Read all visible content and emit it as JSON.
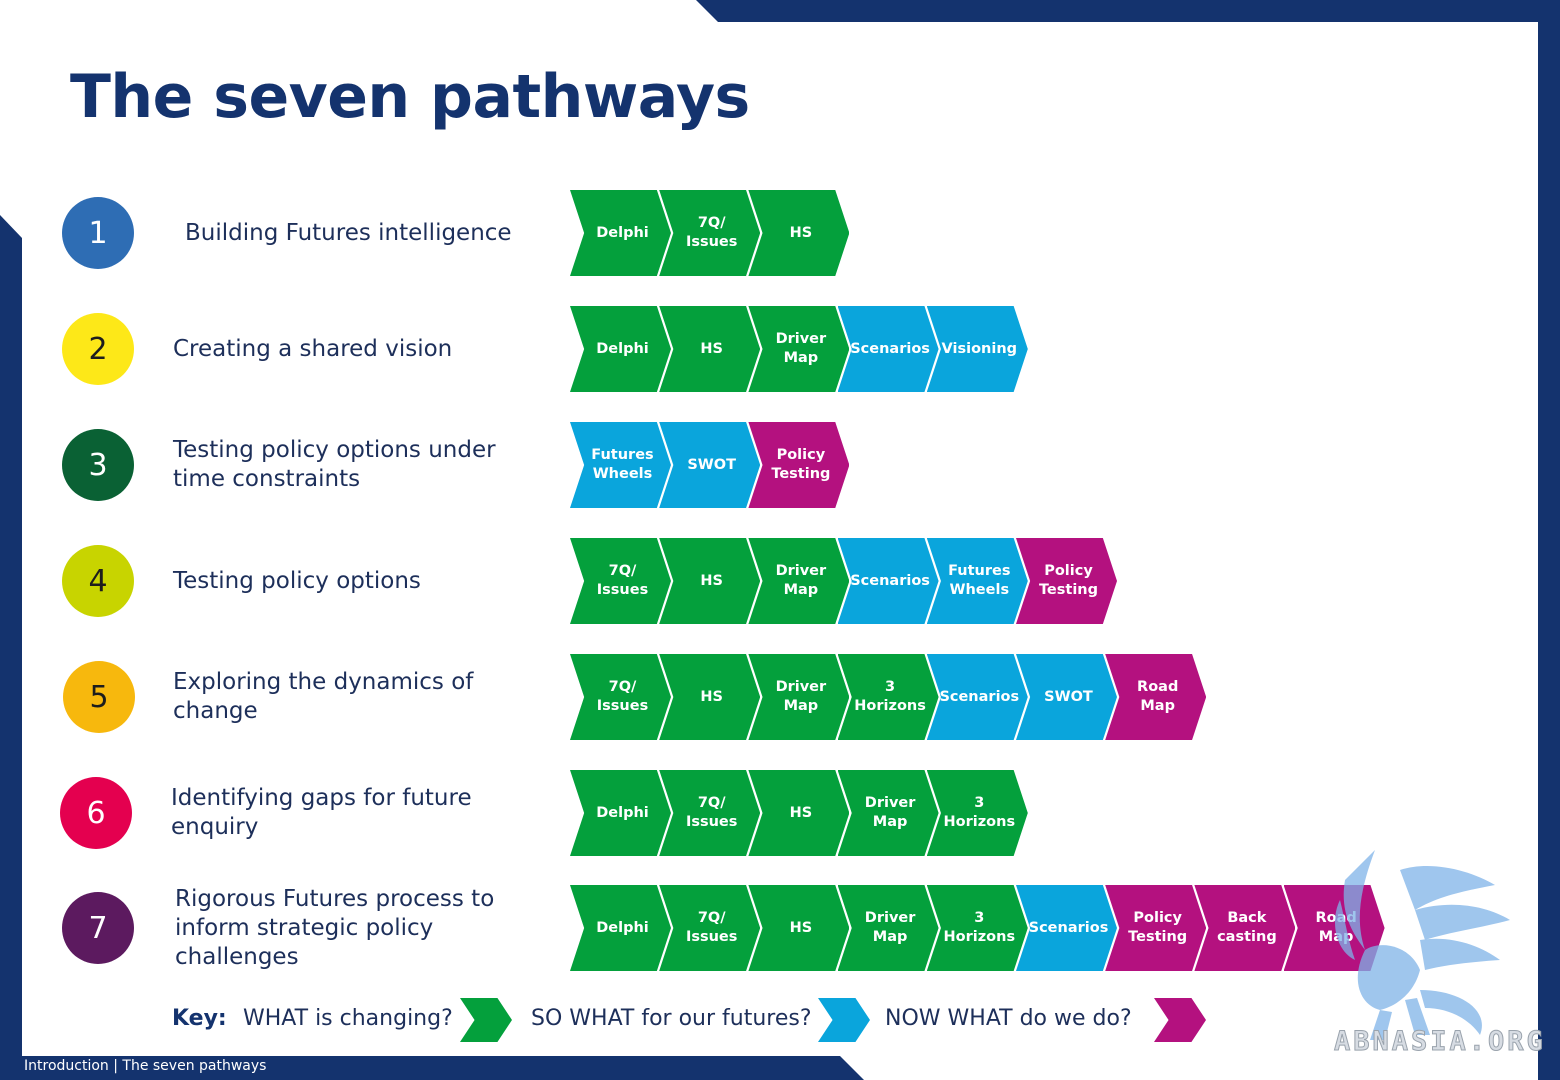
{
  "title": "The seven pathways",
  "footer": "Introduction | The seven pathways",
  "colors": {
    "navy": "#14336e",
    "what": "#04a03c",
    "so_what": "#0aa5dc",
    "now_what": "#b4117f"
  },
  "pathways": [
    {
      "number": "1",
      "label": "Building Futures intelligence",
      "circle_color": "#2e6db4",
      "num_color": "#ffffff",
      "steps": [
        {
          "text": "Delphi",
          "kind": "what"
        },
        {
          "text": "7Q/\nIssues",
          "kind": "what"
        },
        {
          "text": "HS",
          "kind": "what"
        }
      ]
    },
    {
      "number": "2",
      "label": "Creating a shared vision",
      "circle_color": "#fde818",
      "num_color": "#1d1d1d",
      "steps": [
        {
          "text": "Delphi",
          "kind": "what"
        },
        {
          "text": "HS",
          "kind": "what"
        },
        {
          "text": "Driver\nMap",
          "kind": "what"
        },
        {
          "text": "Scenarios",
          "kind": "so_what"
        },
        {
          "text": "Visioning",
          "kind": "so_what"
        }
      ]
    },
    {
      "number": "3",
      "label": "Testing policy options under\ntime constraints",
      "circle_color": "#0a6134",
      "num_color": "#ffffff",
      "steps": [
        {
          "text": "Futures\nWheels",
          "kind": "so_what"
        },
        {
          "text": "SWOT",
          "kind": "so_what"
        },
        {
          "text": "Policy\nTesting",
          "kind": "now_what"
        }
      ]
    },
    {
      "number": "4",
      "label": "Testing policy options",
      "circle_color": "#c8d400",
      "num_color": "#1d1d1d",
      "steps": [
        {
          "text": "7Q/\nIssues",
          "kind": "what"
        },
        {
          "text": "HS",
          "kind": "what"
        },
        {
          "text": "Driver\nMap",
          "kind": "what"
        },
        {
          "text": "Scenarios",
          "kind": "so_what"
        },
        {
          "text": "Futures\nWheels",
          "kind": "so_what"
        },
        {
          "text": "Policy\nTesting",
          "kind": "now_what"
        }
      ]
    },
    {
      "number": "5",
      "label": "Exploring the dynamics of\nchange",
      "circle_color": "#f7b80d",
      "num_color": "#1d1d1d",
      "steps": [
        {
          "text": "7Q/\nIssues",
          "kind": "what"
        },
        {
          "text": "HS",
          "kind": "what"
        },
        {
          "text": "Driver\nMap",
          "kind": "what"
        },
        {
          "text": "3\nHorizons",
          "kind": "what"
        },
        {
          "text": "Scenarios",
          "kind": "so_what"
        },
        {
          "text": "SWOT",
          "kind": "so_what"
        },
        {
          "text": "Road\nMap",
          "kind": "now_what"
        }
      ]
    },
    {
      "number": "6",
      "label": "Identifying gaps for future\nenquiry",
      "circle_color": "#e4004f",
      "num_color": "#ffffff",
      "steps": [
        {
          "text": "Delphi",
          "kind": "what"
        },
        {
          "text": "7Q/\nIssues",
          "kind": "what"
        },
        {
          "text": "HS",
          "kind": "what"
        },
        {
          "text": "Driver\nMap",
          "kind": "what"
        },
        {
          "text": "3\nHorizons",
          "kind": "what"
        }
      ]
    },
    {
      "number": "7",
      "label": "Rigorous Futures process to\ninform strategic policy\nchallenges",
      "circle_color": "#5c1a5f",
      "num_color": "#ffffff",
      "steps": [
        {
          "text": "Delphi",
          "kind": "what"
        },
        {
          "text": "7Q/\nIssues",
          "kind": "what"
        },
        {
          "text": "HS",
          "kind": "what"
        },
        {
          "text": "Driver\nMap",
          "kind": "what"
        },
        {
          "text": "3\nHorizons",
          "kind": "what"
        },
        {
          "text": "Scenarios",
          "kind": "so_what"
        },
        {
          "text": "Policy\nTesting",
          "kind": "now_what"
        },
        {
          "text": "Back\ncasting",
          "kind": "now_what"
        },
        {
          "text": "Road\nMap",
          "kind": "now_what"
        }
      ]
    }
  ],
  "key": {
    "title": "Key:",
    "what": "WHAT is changing?",
    "so_what": "SO WHAT for our futures?",
    "now_what": "NOW WHAT do we do?"
  },
  "watermark": "ABNASIA.ORG"
}
